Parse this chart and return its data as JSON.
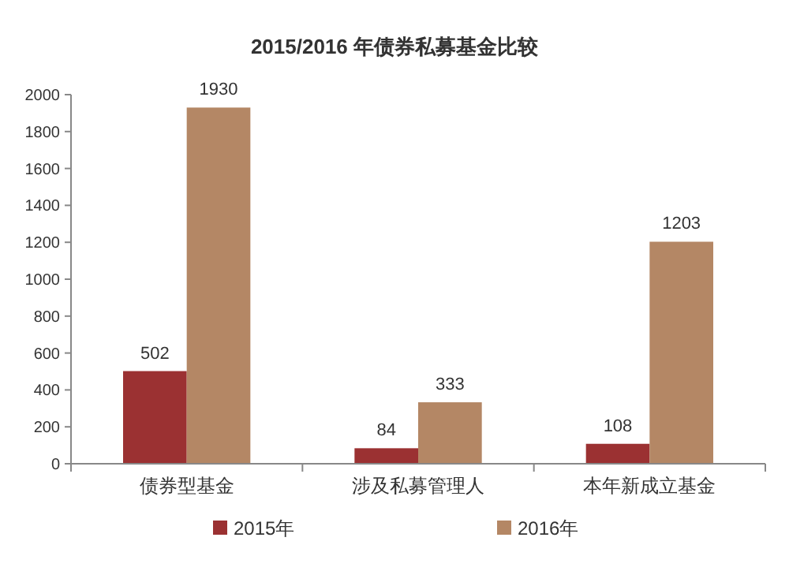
{
  "chart_data": {
    "type": "bar",
    "title": "2015/2016 年债券私募基金比较",
    "categories": [
      "债券型基金",
      "涉及私募管理人",
      "本年新成立基金"
    ],
    "series": [
      {
        "name": "2015年",
        "color": "#9b3132",
        "values": [
          502,
          84,
          108
        ]
      },
      {
        "name": "2016年",
        "color": "#b48765",
        "values": [
          1930,
          333,
          1203
        ]
      }
    ],
    "ylim": [
      0,
      2000
    ],
    "yticks": [
      0,
      200,
      400,
      600,
      800,
      1000,
      1200,
      1400,
      1600,
      1800,
      2000
    ],
    "data_labels": true,
    "legend": "bottom",
    "grid": false
  }
}
